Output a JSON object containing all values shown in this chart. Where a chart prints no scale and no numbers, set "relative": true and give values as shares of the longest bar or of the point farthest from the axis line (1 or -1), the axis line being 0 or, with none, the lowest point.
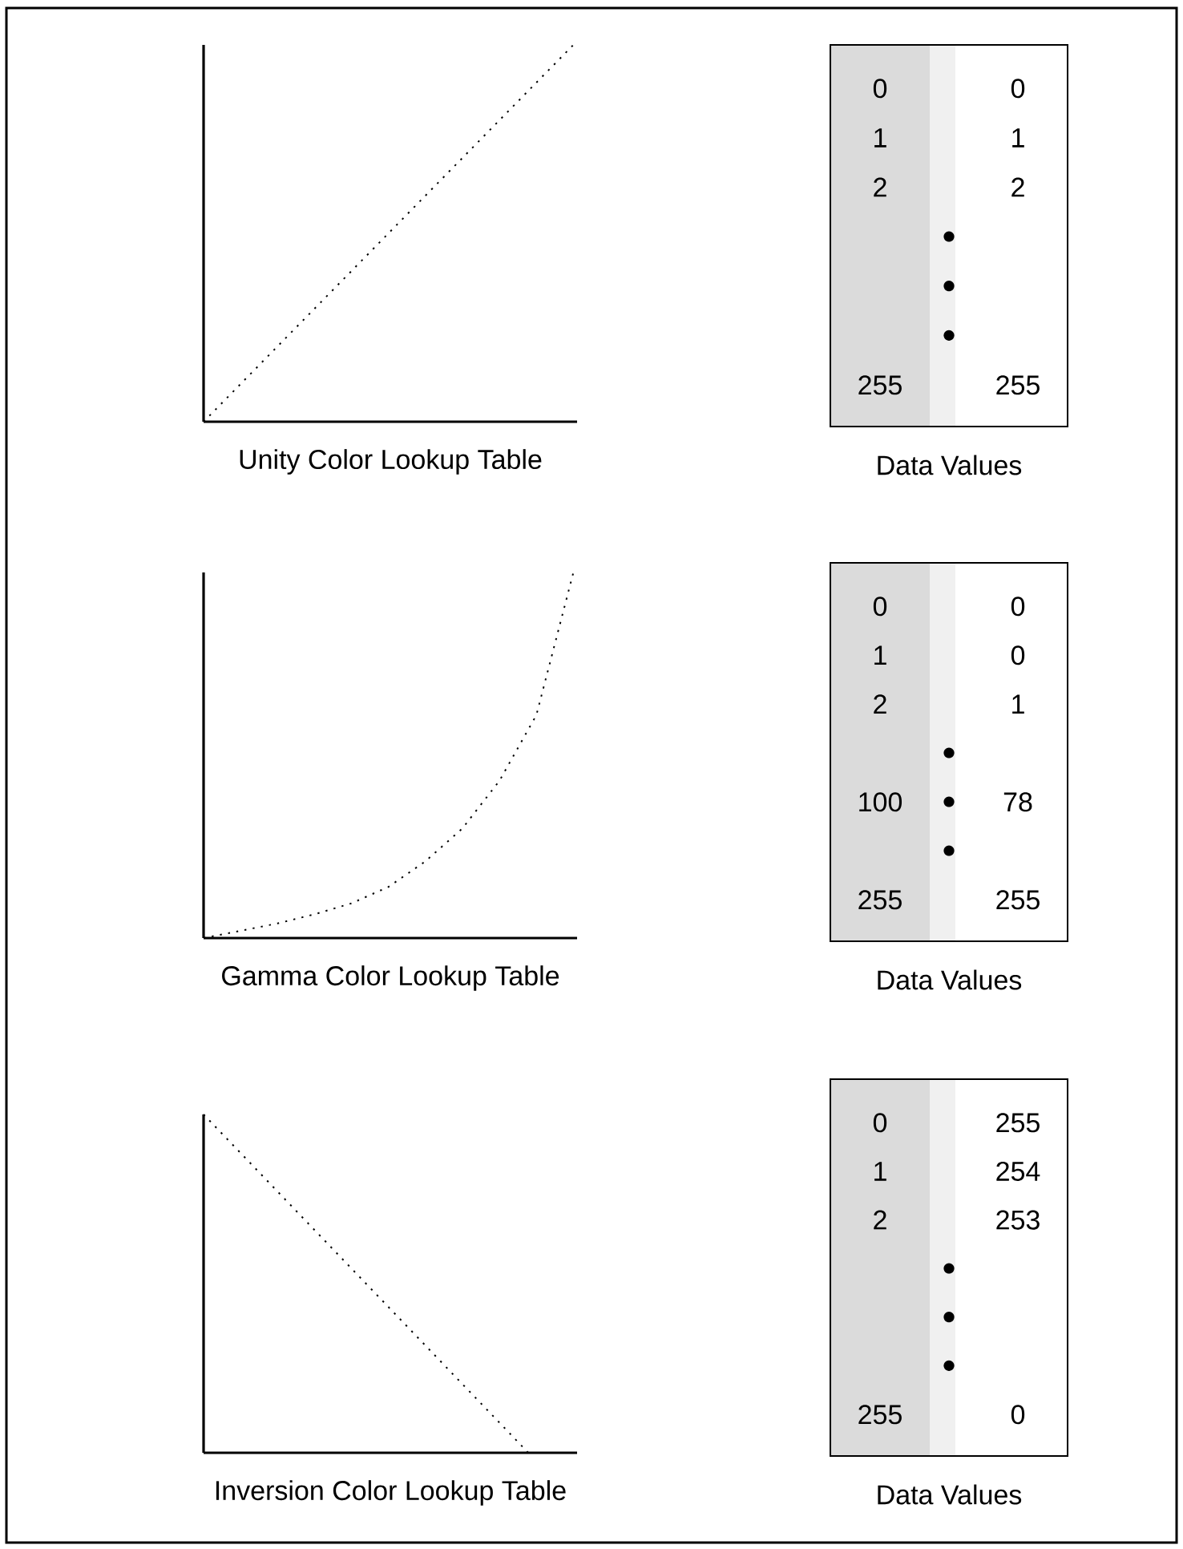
{
  "chart_data": [
    {
      "type": "line",
      "relative": true,
      "xlabel": "Unity Color Lookup Table",
      "categories": [
        null,
        null
      ],
      "values": [
        0,
        1
      ],
      "color": "#000000",
      "line_style": "dotted"
    },
    {
      "type": "other",
      "xlabel": "Data Values",
      "categories": [
        "0",
        "1",
        "2",
        null,
        null,
        null,
        "255"
      ],
      "value_labels": [
        "0",
        "1",
        "2",
        null,
        null,
        null,
        "255"
      ]
    },
    {
      "type": "line",
      "relative": true,
      "xlabel": "Gamma Color Lookup Table",
      "categories": [
        null,
        null,
        null,
        null,
        null,
        null,
        null,
        null,
        null,
        null,
        null
      ],
      "values": [
        0,
        0.02,
        0.04,
        0.065,
        0.095,
        0.14,
        0.21,
        0.3,
        0.43,
        0.61,
        1
      ],
      "color": "#000000",
      "line_style": "dotted"
    },
    {
      "type": "other",
      "xlabel": "Data Values",
      "categories": [
        "0",
        "1",
        "2",
        null,
        "100",
        null,
        "255"
      ],
      "value_labels": [
        "0",
        "0",
        "1",
        null,
        "78",
        null,
        "255"
      ]
    },
    {
      "type": "line",
      "relative": true,
      "xlabel": "Inversion Color Lookup Table",
      "categories": [
        null,
        null
      ],
      "values": [
        1,
        0
      ],
      "color": "#000000",
      "line_style": "dotted"
    },
    {
      "type": "other",
      "xlabel": "Data Values",
      "categories": [
        "0",
        "1",
        "2",
        null,
        null,
        null,
        "255"
      ],
      "value_labels": [
        "255",
        "254",
        "253",
        null,
        null,
        null,
        "0"
      ]
    }
  ]
}
